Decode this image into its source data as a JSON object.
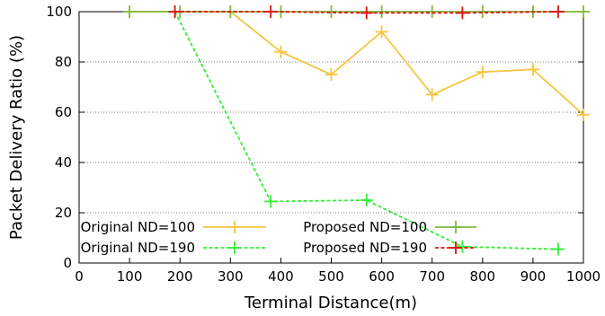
{
  "chart_data": {
    "type": "line",
    "xlabel": "Terminal Distance(m)",
    "ylabel": "Packet Delivery Ratio (%)",
    "xlim": [
      0,
      1000
    ],
    "ylim": [
      0,
      100
    ],
    "xticks": [
      0,
      100,
      200,
      300,
      400,
      500,
      600,
      700,
      800,
      900,
      1000
    ],
    "yticks": [
      0,
      20,
      40,
      60,
      80,
      100
    ],
    "grid": "horizontal dotted",
    "legend_position": "bottom-left",
    "series": [
      {
        "name": "Original ND=100",
        "color": "#f5c542",
        "dash": "solid",
        "x": [
          100,
          200,
          300,
          400,
          500,
          600,
          700,
          800,
          900,
          1000
        ],
        "y": [
          100,
          100,
          100,
          84,
          75,
          92,
          67,
          76,
          77,
          59
        ]
      },
      {
        "name": "Proposed ND=100",
        "color": "#7fba3c",
        "dash": "solid",
        "x": [
          100,
          200,
          300,
          400,
          500,
          600,
          700,
          800,
          900,
          1000
        ],
        "y": [
          100,
          100,
          100,
          100,
          100,
          100,
          100,
          100,
          100,
          100
        ]
      },
      {
        "name": "Original ND=190",
        "color": "#33ee33",
        "dash": "dashed",
        "x": [
          190,
          380,
          570,
          760,
          950
        ],
        "y": [
          100,
          24.5,
          25,
          6.5,
          5.5
        ]
      },
      {
        "name": "Proposed ND=190",
        "color": "#dd1111",
        "dash": "dashed",
        "x": [
          190,
          380,
          570,
          760,
          950
        ],
        "y": [
          100,
          100,
          99.5,
          99.5,
          100
        ]
      }
    ]
  }
}
